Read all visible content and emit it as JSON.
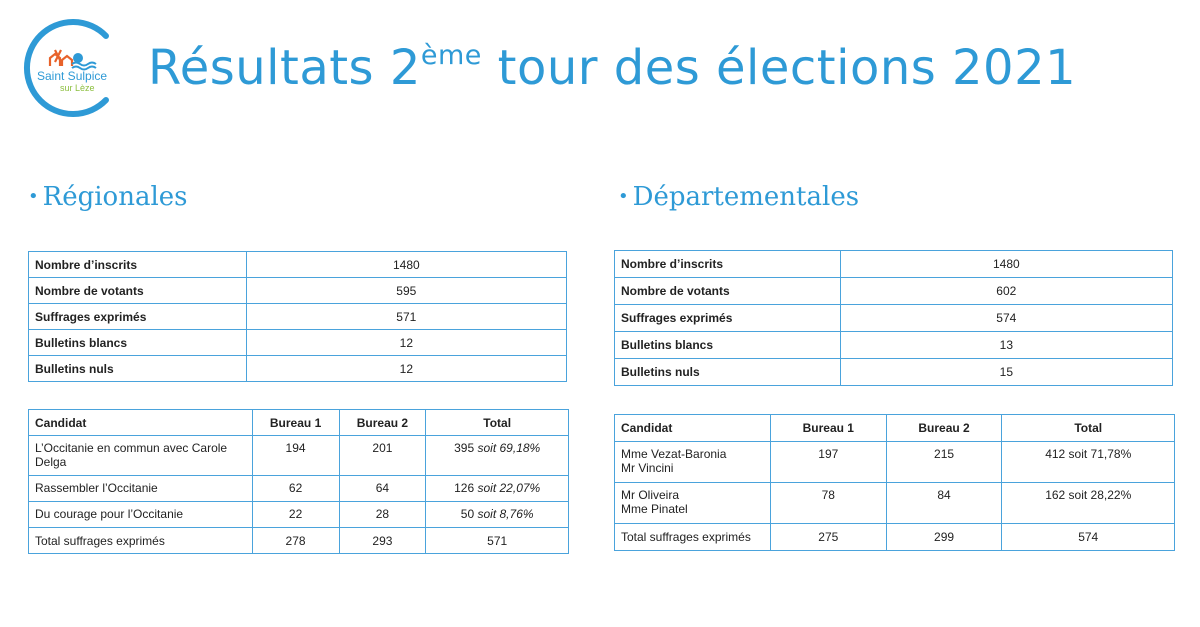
{
  "logo": {
    "line1": "Saint Sulpice",
    "line2": "sur Lèze"
  },
  "header": {
    "title_prefix": "Résultats 2",
    "title_sup": "ème",
    "title_suffix": " tour des élections 2021"
  },
  "regionales": {
    "title": "Régionales",
    "stats": [
      {
        "label": "Nombre d’inscrits",
        "value": "1480"
      },
      {
        "label": "Nombre de votants",
        "value": "595"
      },
      {
        "label": "Suffrages exprimés",
        "value": "571"
      },
      {
        "label": "Bulletins blancs",
        "value": "12"
      },
      {
        "label": "Bulletins nuls",
        "value": "12"
      }
    ],
    "headers": {
      "candidat": "Candidat",
      "bureau1": "Bureau 1",
      "bureau2": "Bureau 2",
      "total": "Total"
    },
    "rows": [
      {
        "name1": "L’Occitanie en commun avec Carole",
        "name2": "Delga",
        "b1": "194",
        "b2": "201",
        "total": "395",
        "soit": "soit 69,18%"
      },
      {
        "name1": "Rassembler l’Occitanie",
        "b1": "62",
        "b2": "64",
        "total": "126",
        "soit": "soit 22,07%"
      },
      {
        "name1": "Du courage pour l’Occitanie",
        "b1": "22",
        "b2": "28",
        "total": "50",
        "soit": "soit 8,76%"
      }
    ],
    "total_row": {
      "label": "Total suffrages exprimés",
      "b1": "278",
      "b2": "293",
      "total": "571"
    }
  },
  "departementales": {
    "title": "Départementales",
    "stats": [
      {
        "label": "Nombre d’inscrits",
        "value": "1480"
      },
      {
        "label": "Nombre de votants",
        "value": "602"
      },
      {
        "label": "Suffrages exprimés",
        "value": "574"
      },
      {
        "label": "Bulletins blancs",
        "value": "13"
      },
      {
        "label": "Bulletins nuls",
        "value": "15"
      }
    ],
    "headers": {
      "candidat": "Candidat",
      "bureau1": "Bureau 1",
      "bureau2": "Bureau 2",
      "total": "Total"
    },
    "rows": [
      {
        "name1": "Mme Vezat-Baronia",
        "name2": "Mr Vincini",
        "b1": "197",
        "b2": "215",
        "total": "412 soit 71,78%"
      },
      {
        "name1": "Mr Oliveira",
        "name2": "Mme Pinatel",
        "b1": "78",
        "b2": "84",
        "total": "162 soit 28,22%"
      }
    ],
    "total_row": {
      "label": "Total suffrages exprimés",
      "b1": "275",
      "b2": "299",
      "total": "574"
    }
  },
  "colors": {
    "accent": "#2e9ad6",
    "table_border": "#4aa3dc",
    "logo_orange": "#e8622a",
    "logo_green": "#8cbf3f"
  }
}
